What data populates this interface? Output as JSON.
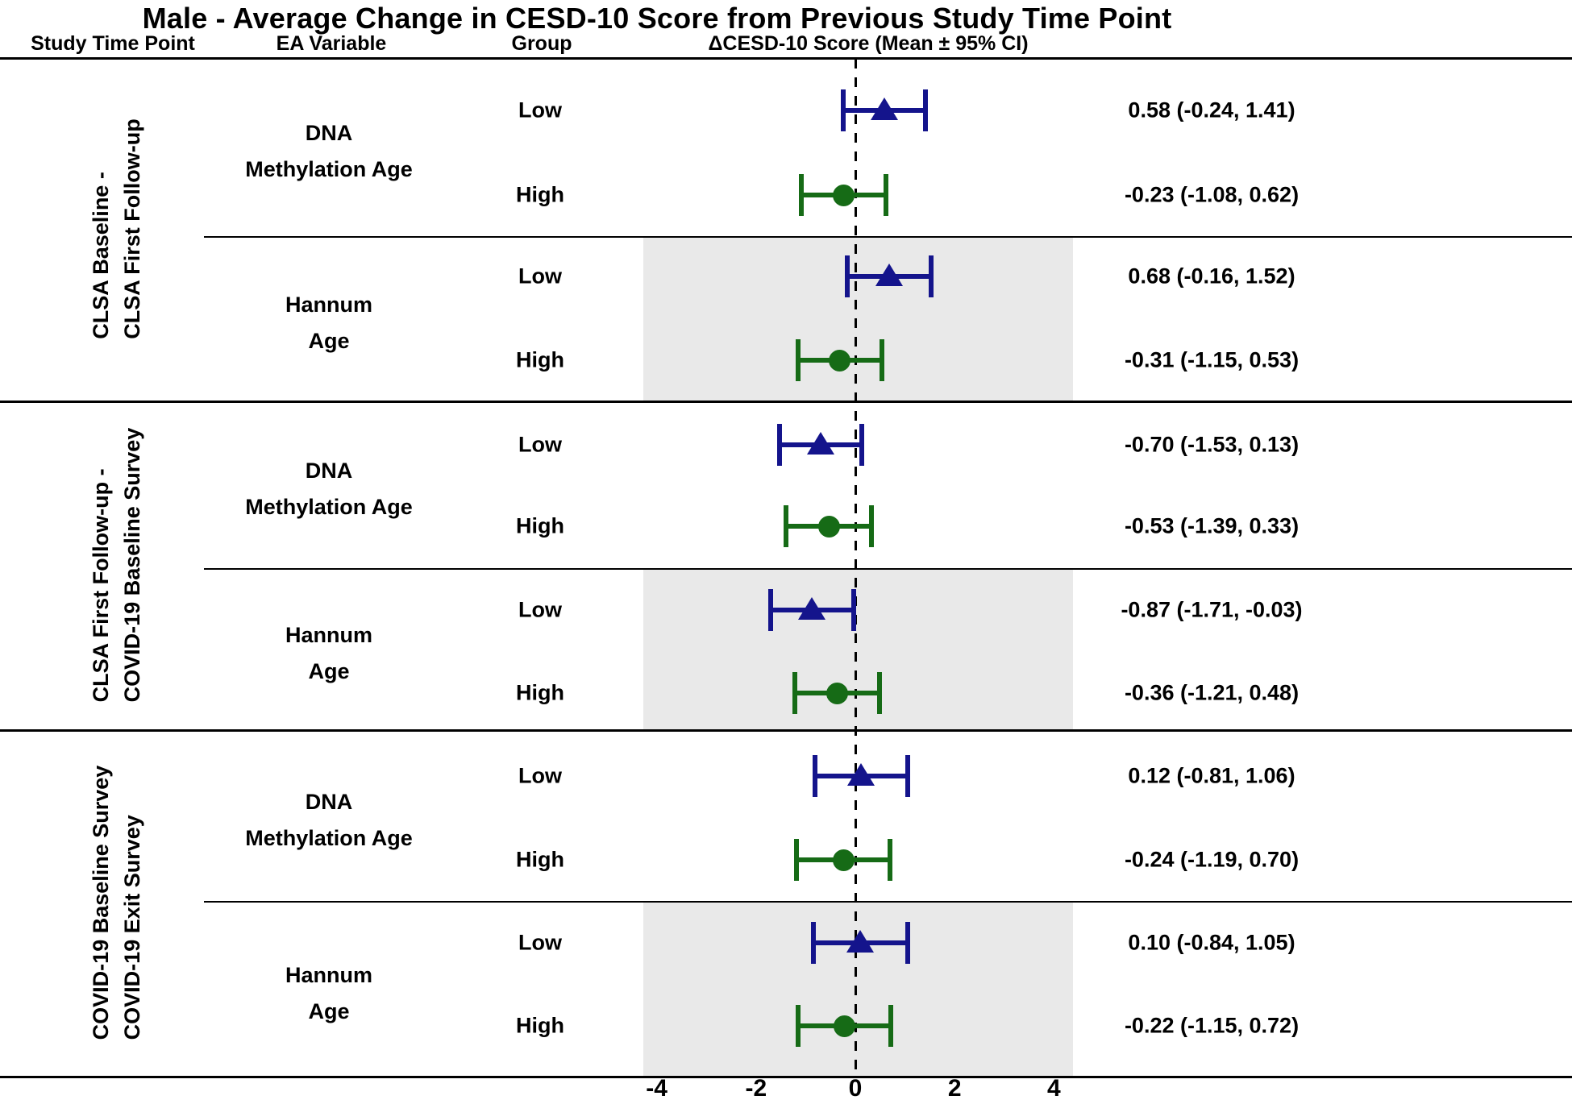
{
  "title": "Male - Average Change in CESD-10 Score from Previous Study Time Point",
  "columns": {
    "study_time_point": "Study Time Point",
    "ea_variable": "EA Variable",
    "group": "Group",
    "score": "ΔCESD-10 Score (Mean ± 95% CI)"
  },
  "colors": {
    "low_marker": "#14148c",
    "high_marker": "#166b16",
    "shaded_band": "#e9e9e9",
    "line": "#000000"
  },
  "chart_data": {
    "type": "forest",
    "x_ticks": [
      -4,
      -2,
      0,
      2,
      4
    ],
    "xlim": [
      -4.4,
      4.4
    ],
    "zero_line": 0,
    "legend": {
      "triangle": "Low",
      "circle": "High"
    },
    "sections": [
      {
        "label_lines": [
          "CLSA Baseline -",
          "CLSA First Follow-up"
        ],
        "ea_blocks": [
          {
            "ea_lines": [
              "DNA",
              "Methylation Age"
            ],
            "shaded": false,
            "rows": [
              {
                "group": "Low",
                "mean": 0.58,
                "lo": -0.24,
                "hi": 1.41,
                "marker": "triangle",
                "label": "0.58 (-0.24, 1.41)"
              },
              {
                "group": "High",
                "mean": -0.23,
                "lo": -1.08,
                "hi": 0.62,
                "marker": "circle",
                "label": "-0.23 (-1.08, 0.62)"
              }
            ]
          },
          {
            "ea_lines": [
              "Hannum",
              "Age"
            ],
            "shaded": true,
            "rows": [
              {
                "group": "Low",
                "mean": 0.68,
                "lo": -0.16,
                "hi": 1.52,
                "marker": "triangle",
                "label": "0.68 (-0.16, 1.52)"
              },
              {
                "group": "High",
                "mean": -0.31,
                "lo": -1.15,
                "hi": 0.53,
                "marker": "circle",
                "label": "-0.31 (-1.15, 0.53)"
              }
            ]
          }
        ]
      },
      {
        "label_lines": [
          "CLSA First Follow-up -",
          "COVID-19 Baseline Survey"
        ],
        "ea_blocks": [
          {
            "ea_lines": [
              "DNA",
              "Methylation Age"
            ],
            "shaded": false,
            "rows": [
              {
                "group": "Low",
                "mean": -0.7,
                "lo": -1.53,
                "hi": 0.13,
                "marker": "triangle",
                "label": "-0.70 (-1.53, 0.13)"
              },
              {
                "group": "High",
                "mean": -0.53,
                "lo": -1.39,
                "hi": 0.33,
                "marker": "circle",
                "label": "-0.53 (-1.39, 0.33)"
              }
            ]
          },
          {
            "ea_lines": [
              "Hannum",
              "Age"
            ],
            "shaded": true,
            "rows": [
              {
                "group": "Low",
                "mean": -0.87,
                "lo": -1.71,
                "hi": -0.03,
                "marker": "triangle",
                "label": "-0.87 (-1.71, -0.03)"
              },
              {
                "group": "High",
                "mean": -0.36,
                "lo": -1.21,
                "hi": 0.48,
                "marker": "circle",
                "label": "-0.36 (-1.21, 0.48)"
              }
            ]
          }
        ]
      },
      {
        "label_lines": [
          "COVID-19 Baseline Survey",
          "COVID-19 Exit Survey"
        ],
        "ea_blocks": [
          {
            "ea_lines": [
              "DNA",
              "Methylation Age"
            ],
            "shaded": false,
            "rows": [
              {
                "group": "Low",
                "mean": 0.12,
                "lo": -0.81,
                "hi": 1.06,
                "marker": "triangle",
                "label": "0.12 (-0.81, 1.06)"
              },
              {
                "group": "High",
                "mean": -0.24,
                "lo": -1.19,
                "hi": 0.7,
                "marker": "circle",
                "label": "-0.24 (-1.19, 0.70)"
              }
            ]
          },
          {
            "ea_lines": [
              "Hannum",
              "Age"
            ],
            "shaded": true,
            "rows": [
              {
                "group": "Low",
                "mean": 0.1,
                "lo": -0.84,
                "hi": 1.05,
                "marker": "triangle",
                "label": "0.10 (-0.84, 1.05)"
              },
              {
                "group": "High",
                "mean": -0.22,
                "lo": -1.15,
                "hi": 0.72,
                "marker": "circle",
                "label": "-0.22 (-1.15, 0.72)"
              }
            ]
          }
        ]
      }
    ]
  }
}
